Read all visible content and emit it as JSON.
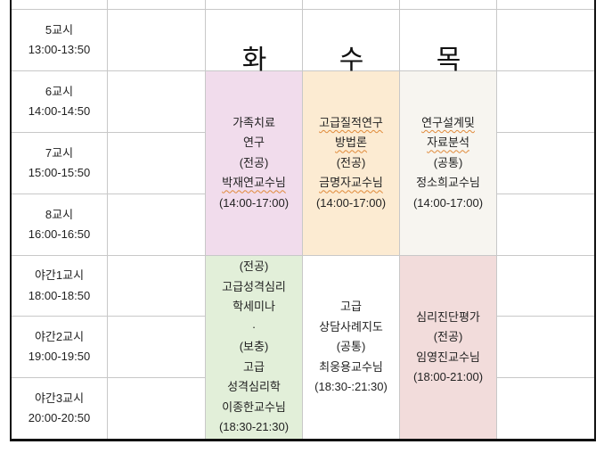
{
  "periods": [
    {
      "name": "5교시",
      "time": "13:00-13:50"
    },
    {
      "name": "6교시",
      "time": "14:00-14:50"
    },
    {
      "name": "7교시",
      "time": "15:00-15:50"
    },
    {
      "name": "8교시",
      "time": "16:00-16:50"
    },
    {
      "name": "야간1교시",
      "time": "18:00-18:50"
    },
    {
      "name": "야간2교시",
      "time": "19:00-19:50"
    },
    {
      "name": "야간3교시",
      "time": "20:00-20:50"
    }
  ],
  "days": [
    "화",
    "수",
    "목"
  ],
  "courses": {
    "tue_day": {
      "lines": [
        "가족치료",
        "연구",
        "(전공)",
        "박재연교수님",
        "(14:00-17:00)"
      ],
      "color": "#f1dcec"
    },
    "wed_day": {
      "lines": [
        "고급질적연구",
        "방법론",
        "(전공)",
        "금명자교수님",
        "(14:00-17:00)"
      ],
      "color": "#fcebd2"
    },
    "thu_day": {
      "lines": [
        "연구설계및",
        "자료분석",
        "(공통)",
        "정소희교수님",
        "(14:00-17:00)"
      ],
      "color": "#f7f5f0"
    },
    "tue_night": {
      "lines": [
        "(전공)",
        "고급성격심리",
        "학세미나",
        "·",
        "(보충)",
        "고급",
        "성격심리학",
        "이종한교수님",
        "(18:30-21:30)"
      ],
      "color": "#e2efd9"
    },
    "wed_night": {
      "lines": [
        "고급",
        "상담사례지도",
        "(공통)",
        "최웅용교수님",
        "(18:30-:21:30)"
      ],
      "color": "#ffffff"
    },
    "thu_night": {
      "lines": [
        "심리진단평가",
        "(전공)",
        "임영진교수님",
        "(18:00-21:00)"
      ],
      "color": "#f2dcdb"
    }
  }
}
